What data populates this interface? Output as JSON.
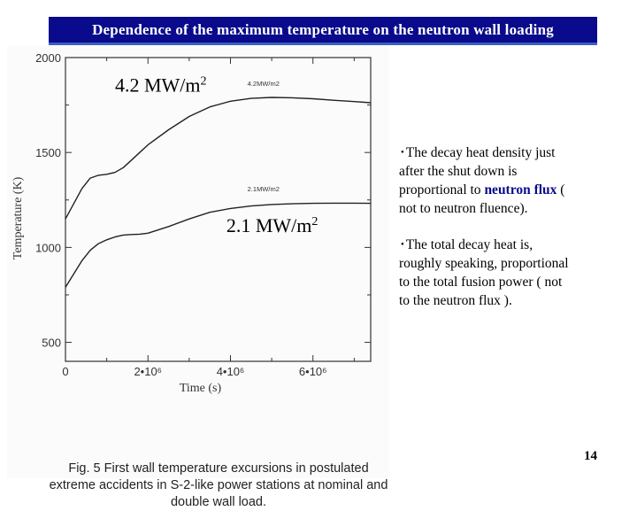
{
  "title": "Dependence of the maximum temperature on the neutron wall loading",
  "chart_data": {
    "type": "line",
    "xlabel": "Time (s)",
    "ylabel": "Temperature (K)",
    "xlim": [
      0,
      7400000
    ],
    "ylim": [
      400,
      2000
    ],
    "x_ticks": [
      0,
      2000000,
      4000000,
      6000000
    ],
    "x_tick_labels": [
      "0",
      "2•10⁶",
      "4•10⁶",
      "6•10⁶"
    ],
    "y_ticks": [
      500,
      1000,
      1500,
      2000
    ],
    "y_tick_labels": [
      "500",
      "1000",
      "1500",
      "2000"
    ],
    "series": [
      {
        "name": "4.2MW/m2",
        "x": [
          0,
          200000,
          400000,
          600000,
          800000,
          1000000,
          1200000,
          1400000,
          1600000,
          1800000,
          2000000,
          2500000,
          3000000,
          3500000,
          4000000,
          4500000,
          5000000,
          5500000,
          6000000,
          6500000,
          7000000,
          7400000
        ],
        "y": [
          1150,
          1230,
          1310,
          1365,
          1380,
          1385,
          1395,
          1420,
          1460,
          1500,
          1540,
          1620,
          1690,
          1740,
          1770,
          1785,
          1790,
          1788,
          1783,
          1775,
          1768,
          1762
        ]
      },
      {
        "name": "2.1MW/m2",
        "x": [
          0,
          200000,
          400000,
          600000,
          800000,
          1000000,
          1200000,
          1400000,
          1600000,
          1800000,
          2000000,
          2500000,
          3000000,
          3500000,
          4000000,
          4500000,
          5000000,
          5500000,
          6000000,
          6500000,
          7000000,
          7400000
        ],
        "y": [
          790,
          860,
          930,
          985,
          1020,
          1040,
          1055,
          1065,
          1068,
          1070,
          1075,
          1110,
          1150,
          1185,
          1205,
          1218,
          1226,
          1230,
          1232,
          1233,
          1233,
          1232
        ]
      }
    ],
    "annotations": [
      {
        "text": "4.2MW/m2",
        "x": 4800000,
        "y": 1850
      },
      {
        "text": "2.1MW/m2",
        "x": 4800000,
        "y": 1295
      }
    ]
  },
  "labels": {
    "high": {
      "text": "4.2 MW/m",
      "sup": "2",
      "x": 1200000,
      "y": 1820
    },
    "low": {
      "text": "2.1 MW/m",
      "sup": "2",
      "x": 3900000,
      "y": 1080
    }
  },
  "caption": [
    "Fig. 5 First wall temperature excursions in postulated",
    "extreme accidents in S-2-like power stations at nominal and",
    "double wall load."
  ],
  "bullets": [
    {
      "lines": [
        [
          {
            "t": "･The decay heat density  just"
          }
        ],
        [
          {
            "t": "after the shut down is"
          }
        ],
        [
          {
            "t": "proportional to "
          },
          {
            "t": "neutron flux",
            "hl": true
          },
          {
            "t": " ("
          }
        ],
        [
          {
            "t": "not to neutron fluence)."
          }
        ]
      ]
    },
    {
      "lines": [
        [
          {
            "t": "･The total decay heat is,"
          }
        ],
        [
          {
            "t": "roughly speaking, proportional"
          }
        ],
        [
          {
            "t": "to the total fusion power ( not"
          }
        ],
        [
          {
            "t": "to the neutron flux )."
          }
        ]
      ]
    }
  ],
  "page_number": "14",
  "colors": {
    "title_bg": "#0a0a8c",
    "title_text": "#ffffff",
    "highlight": "#0a0a8c"
  }
}
